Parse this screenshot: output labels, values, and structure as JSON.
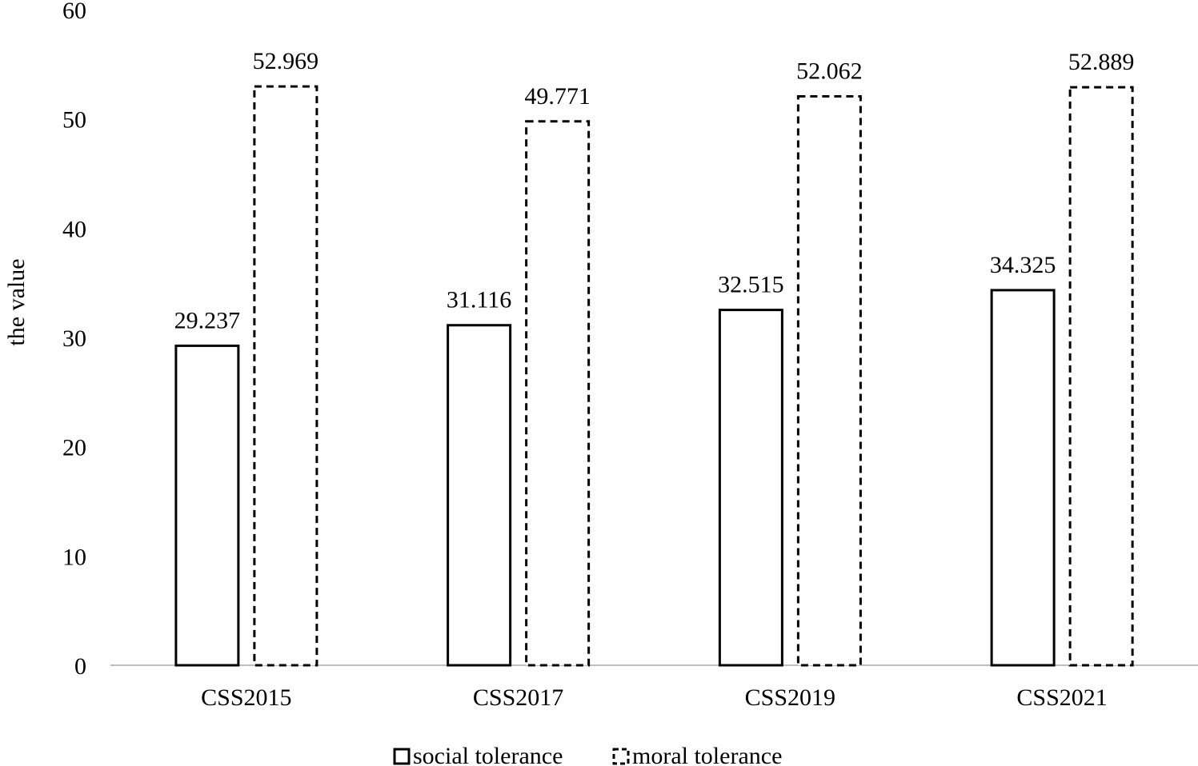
{
  "chart_data": {
    "type": "bar",
    "title": "",
    "xlabel": "",
    "ylabel": "the value",
    "ylim": [
      0,
      60
    ],
    "yticks": [
      "0",
      "10",
      "20",
      "30",
      "40",
      "50",
      "60"
    ],
    "categories": [
      "CSS2015",
      "CSS2017",
      "CSS2019",
      "CSS2021"
    ],
    "series": [
      {
        "name": "social tolerance",
        "style": "solid",
        "values": [
          29.237,
          31.116,
          32.515,
          34.325
        ],
        "labels": [
          "29.237",
          "31.116",
          "32.515",
          "34.325"
        ]
      },
      {
        "name": "moral tolerance",
        "style": "dashed",
        "values": [
          52.969,
          49.771,
          52.062,
          52.889
        ],
        "labels": [
          "52.969",
          "49.771",
          "52.062",
          "52.889"
        ]
      }
    ],
    "grid": false,
    "legend_position": "bottom",
    "colors": {
      "bar_stroke": "#000000",
      "bar_fill": "#ffffff",
      "axis": "#bfbfbf"
    }
  }
}
